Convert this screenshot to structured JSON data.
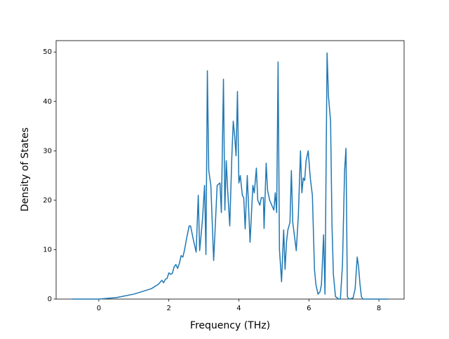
{
  "chart_data": {
    "type": "line",
    "xlabel": "Frequency (THz)",
    "ylabel": "Density of States",
    "xlim": [
      -1.22,
      8.72
    ],
    "ylim": [
      0,
      52.3
    ],
    "xticks": [
      0,
      2,
      4,
      6,
      8
    ],
    "yticks": [
      0,
      10,
      20,
      30,
      40,
      50
    ],
    "series": [
      {
        "color": "#1f77b4",
        "x": [
          -0.77,
          0,
          0.5,
          1.0,
          1.5,
          1.7,
          1.8,
          1.85,
          1.9,
          1.95,
          2.0,
          2.05,
          2.1,
          2.15,
          2.2,
          2.25,
          2.3,
          2.35,
          2.4,
          2.45,
          2.5,
          2.58,
          2.62,
          2.7,
          2.78,
          2.84,
          2.88,
          2.96,
          3.02,
          3.06,
          3.1,
          3.14,
          3.2,
          3.28,
          3.38,
          3.46,
          3.5,
          3.56,
          3.6,
          3.64,
          3.68,
          3.74,
          3.8,
          3.84,
          3.88,
          3.92,
          3.96,
          4.0,
          4.04,
          4.1,
          4.14,
          4.18,
          4.24,
          4.32,
          4.4,
          4.44,
          4.5,
          4.54,
          4.6,
          4.64,
          4.7,
          4.72,
          4.78,
          4.82,
          4.88,
          4.94,
          5.0,
          5.04,
          5.08,
          5.12,
          5.16,
          5.22,
          5.28,
          5.32,
          5.36,
          5.4,
          5.46,
          5.5,
          5.54,
          5.64,
          5.7,
          5.76,
          5.8,
          5.84,
          5.88,
          5.92,
          5.98,
          6.04,
          6.1,
          6.16,
          6.2,
          6.26,
          6.32,
          6.36,
          6.42,
          6.46,
          6.52,
          6.56,
          6.62,
          6.66,
          6.7,
          6.76,
          6.86,
          6.9,
          6.96,
          7.02,
          7.06,
          7.1,
          7.14,
          7.26,
          7.32,
          7.38,
          7.42,
          7.46,
          7.5,
          7.54,
          8.27
        ],
        "values": [
          0,
          0,
          0.3,
          1.0,
          2.1,
          3.0,
          3.8,
          3.3,
          4.0,
          4.2,
          5.3,
          5.0,
          5.2,
          6.5,
          7.0,
          6.2,
          7.2,
          8.8,
          8.5,
          10,
          12,
          14.8,
          14.8,
          12,
          9.5,
          21,
          9.8,
          16,
          23,
          9,
          46.2,
          26,
          23,
          7.8,
          23,
          23.5,
          17.5,
          44.5,
          18,
          28,
          22,
          14.8,
          29,
          36,
          33,
          29,
          42,
          23.5,
          25,
          21,
          20.5,
          14.2,
          25,
          11.5,
          23,
          21.5,
          26.5,
          20,
          19,
          20.5,
          20.5,
          14.3,
          27.5,
          22,
          20,
          19,
          18,
          21.5,
          17.5,
          48,
          10,
          3.5,
          14,
          6,
          11.5,
          14,
          15.5,
          26,
          15.5,
          9.8,
          17,
          30,
          21.5,
          24.5,
          24,
          28,
          30,
          24.5,
          21,
          6,
          3,
          1,
          1.5,
          3,
          13,
          1,
          49.8,
          41,
          36,
          15,
          5,
          0.5,
          0,
          0,
          7,
          26,
          30.5,
          0.5,
          0,
          0.2,
          2,
          8.5,
          6.5,
          3,
          0.5,
          0,
          0
        ]
      }
    ]
  }
}
